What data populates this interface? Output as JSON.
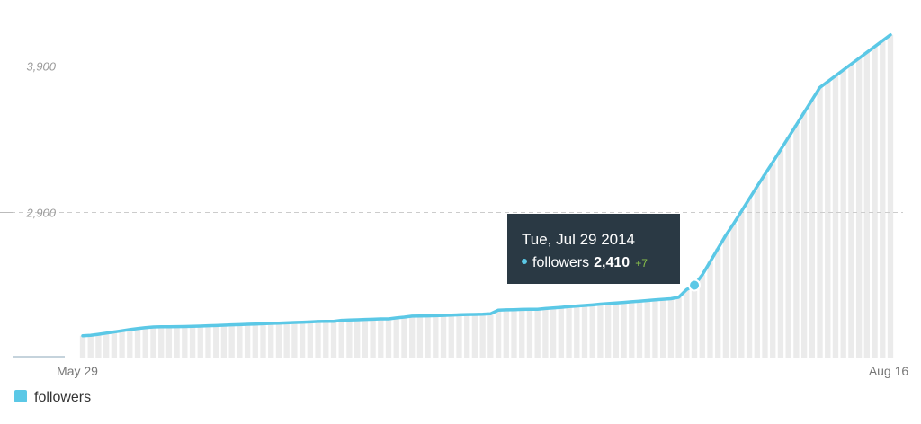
{
  "chart_data": {
    "type": "line",
    "xlim": [
      "May 29",
      "Aug 16"
    ],
    "x_tick_labels": [
      "May 29",
      "Aug 16"
    ],
    "y_tick_labels": [
      "3,900",
      "2,900"
    ],
    "y_ticks": [
      3900,
      2900
    ],
    "ylim": [
      2000,
      4150
    ],
    "grid": true,
    "legend": "bottom-left",
    "series": [
      {
        "name": "followers",
        "color": "#5bc8e6",
        "values": [
          2055,
          2058,
          2065,
          2073,
          2081,
          2089,
          2097,
          2104,
          2110,
          2115,
          2116,
          2116,
          2117,
          2118,
          2119,
          2121,
          2123,
          2125,
          2127,
          2129,
          2131,
          2133,
          2135,
          2137,
          2139,
          2141,
          2143,
          2145,
          2147,
          2149,
          2152,
          2153,
          2153,
          2160,
          2162,
          2164,
          2166,
          2168,
          2170,
          2170,
          2177,
          2182,
          2189,
          2190,
          2191,
          2192,
          2194,
          2196,
          2198,
          2200,
          2201,
          2202,
          2205,
          2230,
          2232,
          2233,
          2235,
          2236,
          2236,
          2241,
          2245,
          2249,
          2254,
          2258,
          2262,
          2266,
          2271,
          2275,
          2279,
          2283,
          2287,
          2291,
          2296,
          2300,
          2304,
          2308,
          2318,
          2370,
          2400,
          2470,
          2560,
          2650,
          2740,
          2820,
          2905,
          2990,
          3075,
          3158,
          3240,
          3325,
          3410,
          3495,
          3580,
          3665,
          3750,
          3790,
          3830,
          3870,
          3910,
          3950,
          3990,
          4030,
          4070,
          4110
        ]
      }
    ],
    "tooltip": {
      "date": "Tue, Jul 29 2014",
      "series_name": "followers",
      "value": "2,410",
      "delta": "+7"
    }
  },
  "colors": {
    "line": "#5bc8e6",
    "bar": "#ebebeb",
    "grid": "#cccccc",
    "tooltip_bg": "#2a3944",
    "delta": "#8bc34a"
  }
}
